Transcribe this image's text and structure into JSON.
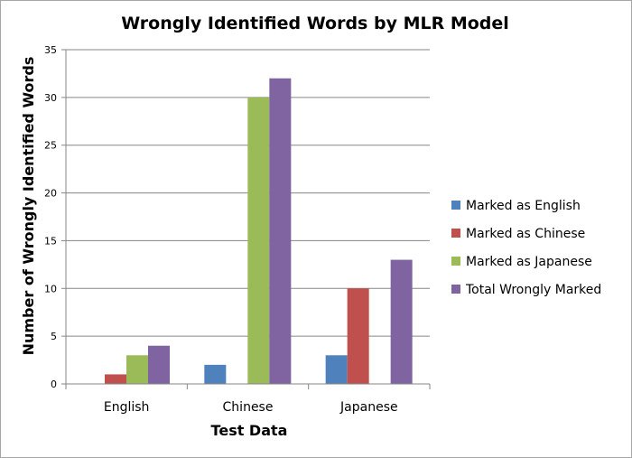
{
  "chart_data": {
    "type": "bar",
    "title": "Wrongly Identified Words by MLR Model",
    "xlabel": "Test Data",
    "ylabel": "Number of Wrongly Identified Words",
    "categories": [
      "English",
      "Chinese",
      "Japanese"
    ],
    "ylim": [
      0,
      35
    ],
    "yticks": [
      0,
      5,
      10,
      15,
      20,
      25,
      30,
      35
    ],
    "grid": true,
    "legend_position": "right",
    "series": [
      {
        "name": "Marked as English",
        "color": "#4f81bd",
        "values": [
          0,
          2,
          3
        ]
      },
      {
        "name": "Marked as Chinese",
        "color": "#c0504d",
        "values": [
          1,
          0,
          10
        ]
      },
      {
        "name": "Marked as Japanese",
        "color": "#9bbb59",
        "values": [
          3,
          30,
          0
        ]
      },
      {
        "name": "Total Wrongly Marked",
        "color": "#8064a2",
        "values": [
          4,
          32,
          13
        ]
      }
    ]
  }
}
